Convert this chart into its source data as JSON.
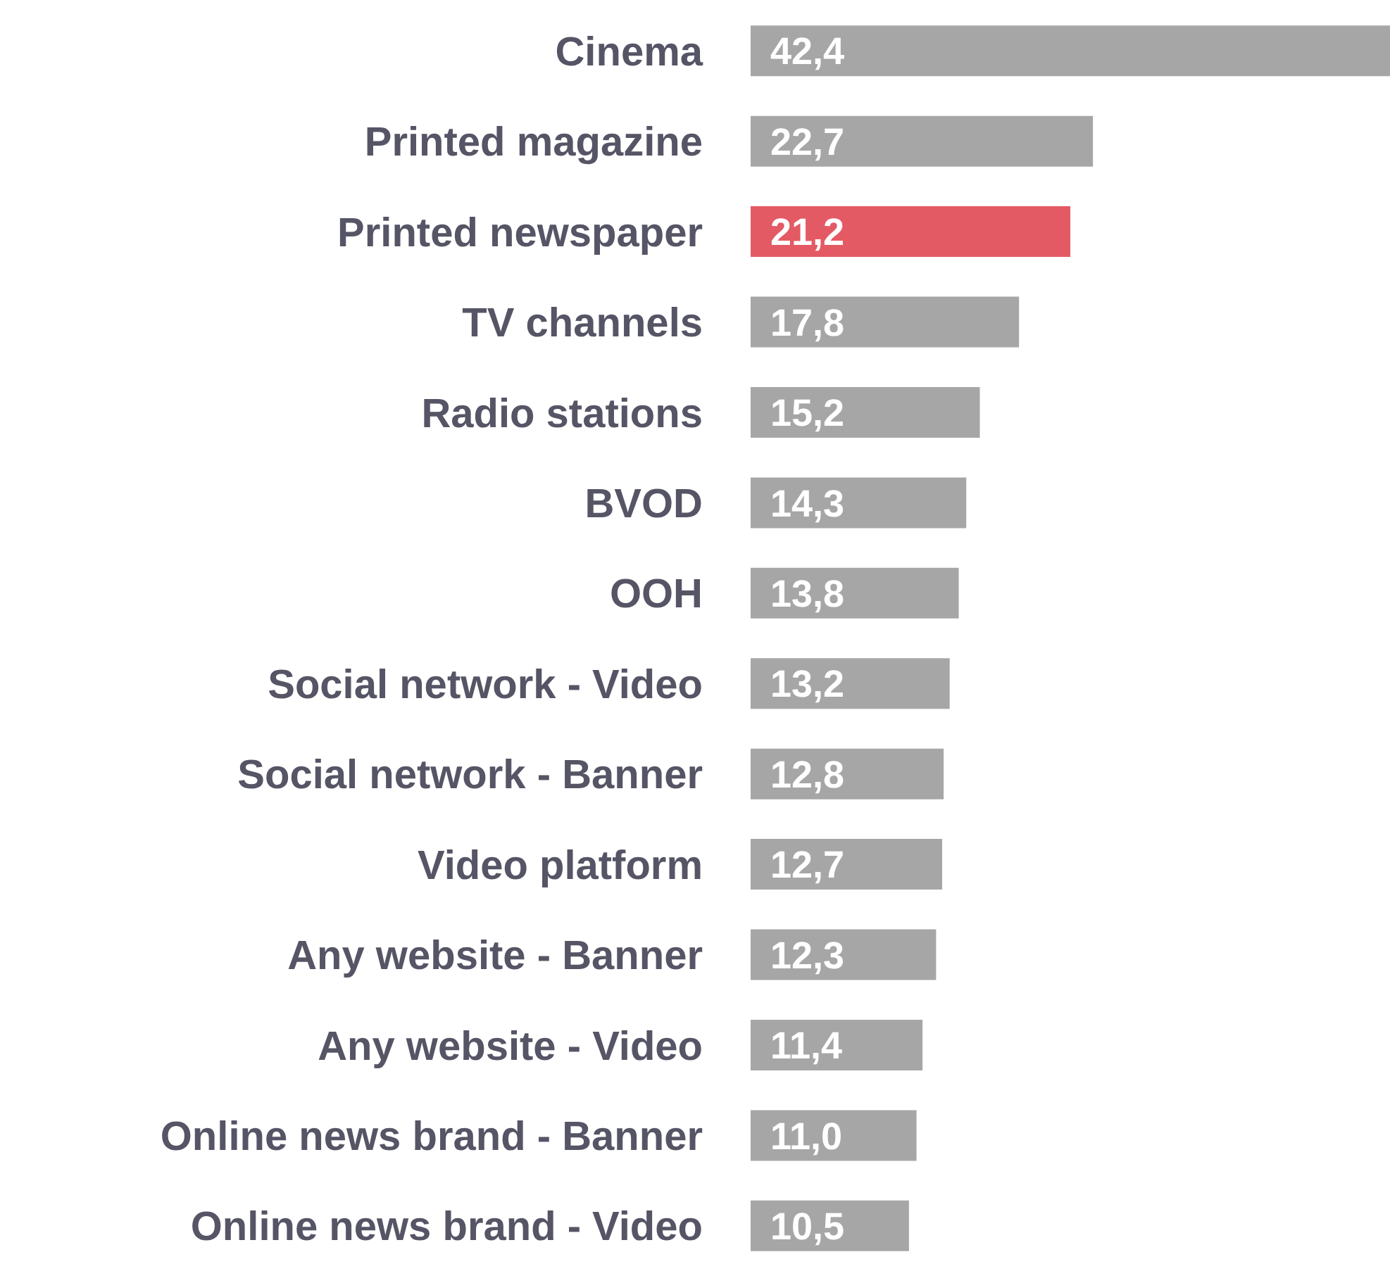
{
  "chart_data": {
    "type": "bar",
    "orientation": "horizontal",
    "categories": [
      "Cinema",
      "Printed magazine",
      "Printed newspaper",
      "TV channels",
      "Radio stations",
      "BVOD",
      "OOH",
      "Social network - Video",
      "Social network - Banner",
      "Video platform",
      "Any website - Banner",
      "Any website - Video",
      "Online news brand - Banner",
      "Online news brand - Video"
    ],
    "values": [
      42.4,
      22.7,
      21.2,
      17.8,
      15.2,
      14.3,
      13.8,
      13.2,
      12.8,
      12.7,
      12.3,
      11.4,
      11.0,
      10.5
    ],
    "value_labels": [
      "42,4",
      "22,7",
      "21,2",
      "17,8",
      "15,2",
      "14,3",
      "13,8",
      "13,2",
      "12,8",
      "12,7",
      "12,3",
      "11,4",
      "11,0",
      "10,5"
    ],
    "colors": [
      "#a6a6a6",
      "#a6a6a6",
      "#e35a64",
      "#a6a6a6",
      "#a6a6a6",
      "#a6a6a6",
      "#a6a6a6",
      "#a6a6a6",
      "#a6a6a6",
      "#a6a6a6",
      "#a6a6a6",
      "#a6a6a6",
      "#a6a6a6",
      "#a6a6a6"
    ],
    "grid": false,
    "legend": false
  }
}
